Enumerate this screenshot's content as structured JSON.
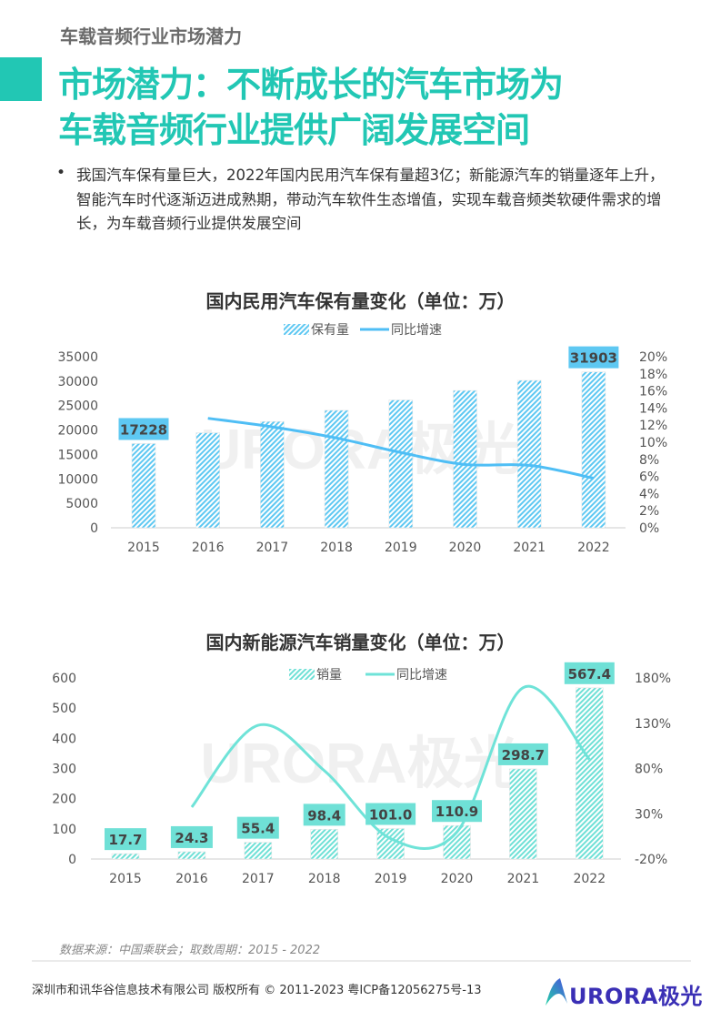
{
  "header": {
    "section": "车载音频行业市场潜力",
    "title_line1": "市场潜力：不断成长的汽车市场为",
    "title_line2": "车载音频行业提供广阔发展空间",
    "accent": "#22c7b4"
  },
  "bullet": {
    "marker": "•",
    "text": "我国汽车保有量巨大，2022年国内民用汽车保有量超3亿；新能源汽车的销量逐年上升，智能汽车时代逐渐迈进成熟期，带动汽车软件生态增值，实现车载音频类软硬件需求的增长，为车载音频行业提供发展空间"
  },
  "watermark": "URORA极光",
  "chart_data": [
    {
      "type": "bar+line",
      "title": "国内民用汽车保有量变化（单位：万）",
      "legend": [
        "保有量",
        "同比增速"
      ],
      "legend_placement": "top-center",
      "categories": [
        "2015",
        "2016",
        "2017",
        "2018",
        "2019",
        "2020",
        "2021",
        "2022"
      ],
      "series": [
        {
          "name": "保有量",
          "type": "bar",
          "axis": "left",
          "values": [
            17228,
            19440,
            21743,
            24028,
            26150,
            28087,
            30151,
            31903
          ],
          "color": "#5ec8f2"
        },
        {
          "name": "同比增速",
          "type": "line",
          "axis": "right",
          "unit": "%",
          "values": [
            null,
            12.8,
            11.8,
            10.5,
            8.8,
            7.4,
            7.3,
            5.8
          ],
          "color": "#4fbef5"
        }
      ],
      "data_labels": {
        "2015": "17228",
        "2022": "31903"
      },
      "left_axis": {
        "range": [
          0,
          35000
        ],
        "ticks": [
          "0",
          "5000",
          "10000",
          "15000",
          "20000",
          "25000",
          "30000",
          "35000"
        ]
      },
      "right_axis": {
        "range": [
          0,
          20
        ],
        "ticks": [
          "0%",
          "2%",
          "4%",
          "6%",
          "8%",
          "10%",
          "12%",
          "14%",
          "16%",
          "18%",
          "20%"
        ]
      },
      "grid": false,
      "label_bg": "#5ec8f2"
    },
    {
      "type": "bar+line",
      "title": "国内新能源汽车销量变化（单位：万）",
      "legend": [
        "销量",
        "同比增速"
      ],
      "legend_placement": "top-center",
      "categories": [
        "2015",
        "2016",
        "2017",
        "2018",
        "2019",
        "2020",
        "2021",
        "2022"
      ],
      "series": [
        {
          "name": "销量",
          "type": "bar",
          "axis": "left",
          "values": [
            17.7,
            24.3,
            55.4,
            98.4,
            101.0,
            110.9,
            298.7,
            567.4
          ],
          "color": "#6fe0d6"
        },
        {
          "name": "同比增速",
          "type": "line",
          "axis": "right",
          "unit": "%",
          "values": [
            null,
            37.3,
            127.7,
            77.6,
            2.6,
            9.8,
            169.3,
            90.0
          ],
          "color": "#6fe3d8"
        }
      ],
      "data_labels": {
        "2015": "17.7",
        "2016": "24.3",
        "2017": "55.4",
        "2018": "98.4",
        "2019": "101.0",
        "2020": "110.9",
        "2021": "298.7",
        "2022": "567.4"
      },
      "left_axis": {
        "range": [
          0,
          600
        ],
        "ticks": [
          "0",
          "100",
          "200",
          "300",
          "400",
          "500",
          "600"
        ]
      },
      "right_axis": {
        "range": [
          -20,
          180
        ],
        "ticks": [
          "-20%",
          "30%",
          "80%",
          "130%",
          "180%"
        ]
      },
      "grid": false,
      "label_bg": "#6fe0d6"
    }
  ],
  "footer": {
    "source": "数据来源：中国乘联会；取数周期：2015 - 2022",
    "copyright": "深圳市和讯华谷信息技术有限公司 版权所有 © 2011-2023 粤ICP备12056275号-13",
    "logo_text": "URORA极光"
  }
}
